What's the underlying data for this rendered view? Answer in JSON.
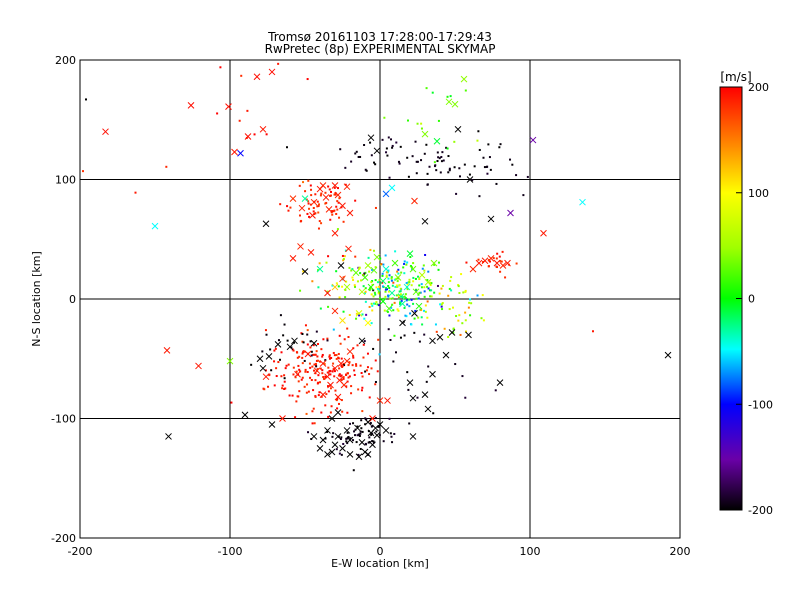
{
  "chart_data": {
    "type": "scatter",
    "title": "Tromsø 20161103 17:28:00-17:29:43",
    "subtitle": "RwPretec (8p) EXPERIMENTAL SKYMAP",
    "xlabel": "E-W location [km]",
    "ylabel": "N-S location [km]",
    "xlim": [
      -200,
      200
    ],
    "ylim": [
      -200,
      200
    ],
    "x_ticks": [
      "-200",
      "-100",
      "0",
      "100",
      "200"
    ],
    "y_ticks": [
      "-200",
      "-100",
      "0",
      "100",
      "200"
    ],
    "grid": true,
    "colorbar": {
      "label": "[m/s]",
      "range": [
        -200,
        200
      ],
      "ticks": [
        "200",
        "100",
        "0",
        "-100",
        "-200"
      ]
    },
    "point_data": [
      {
        "x": -198,
        "y": 107,
        "v": 180,
        "m": "d"
      },
      {
        "x": -196,
        "y": 167,
        "v": -200,
        "m": "d"
      },
      {
        "x": -183,
        "y": 140,
        "v": 195,
        "m": "x"
      },
      {
        "x": -163,
        "y": 89,
        "v": 190,
        "m": "d"
      },
      {
        "x": -150,
        "y": 61,
        "v": -50,
        "m": "x"
      },
      {
        "x": -142,
        "y": -43,
        "v": 190,
        "m": "x"
      },
      {
        "x": -141,
        "y": -115,
        "v": -200,
        "m": "x"
      },
      {
        "x": -126,
        "y": 162,
        "v": 195,
        "m": "x"
      },
      {
        "x": -121,
        "y": -56,
        "v": 190,
        "m": "x"
      },
      {
        "x": -101,
        "y": 161,
        "v": 195,
        "m": "x"
      },
      {
        "x": -97,
        "y": 123,
        "v": 190,
        "m": "x"
      },
      {
        "x": -93,
        "y": 122,
        "v": -100,
        "m": "x"
      },
      {
        "x": -100,
        "y": -52,
        "v": 40,
        "m": "x"
      },
      {
        "x": -88,
        "y": 136,
        "v": 195,
        "m": "x"
      },
      {
        "x": -82,
        "y": 186,
        "v": 195,
        "m": "x"
      },
      {
        "x": -72,
        "y": 190,
        "v": 195,
        "m": "x"
      },
      {
        "x": -78,
        "y": 142,
        "v": 190,
        "m": "x"
      },
      {
        "x": -76,
        "y": 63,
        "v": -200,
        "m": "x"
      },
      {
        "x": -62,
        "y": 127,
        "v": -200,
        "m": "d"
      },
      {
        "x": -58,
        "y": 84,
        "v": 180,
        "m": "x"
      },
      {
        "x": -50,
        "y": 84,
        "v": -30,
        "m": "x"
      },
      {
        "x": -44,
        "y": 81,
        "v": 185,
        "m": "x"
      },
      {
        "x": -40,
        "y": 92,
        "v": 190,
        "m": "x"
      },
      {
        "x": -38,
        "y": 95,
        "v": 185,
        "m": "x"
      },
      {
        "x": -36,
        "y": 85,
        "v": 190,
        "m": "x"
      },
      {
        "x": -30,
        "y": 95,
        "v": 190,
        "m": "x"
      },
      {
        "x": -28,
        "y": 87,
        "v": 185,
        "m": "x"
      },
      {
        "x": -25,
        "y": 78,
        "v": 190,
        "m": "x"
      },
      {
        "x": -22,
        "y": 94,
        "v": 185,
        "m": "x"
      },
      {
        "x": -20,
        "y": 72,
        "v": 190,
        "m": "x"
      },
      {
        "x": -34,
        "y": 75,
        "v": 185,
        "m": "x"
      },
      {
        "x": -45,
        "y": 70,
        "v": 190,
        "m": "x"
      },
      {
        "x": -52,
        "y": 76,
        "v": 185,
        "m": "x"
      },
      {
        "x": -30,
        "y": 55,
        "v": 190,
        "m": "x"
      },
      {
        "x": -21,
        "y": 42,
        "v": 190,
        "m": "x"
      },
      {
        "x": -46,
        "y": 39,
        "v": 190,
        "m": "x"
      },
      {
        "x": -53,
        "y": 44,
        "v": 185,
        "m": "x"
      },
      {
        "x": -58,
        "y": 34,
        "v": 190,
        "m": "x"
      },
      {
        "x": -50,
        "y": 23,
        "v": -200,
        "m": "x"
      },
      {
        "x": -40,
        "y": 25,
        "v": -30,
        "m": "x"
      },
      {
        "x": -26,
        "y": 28,
        "v": -200,
        "m": "x"
      },
      {
        "x": -25,
        "y": 17,
        "v": 175,
        "m": "x"
      },
      {
        "x": -30,
        "y": 10,
        "v": 120,
        "m": "x"
      },
      {
        "x": -35,
        "y": 5,
        "v": 190,
        "m": "x"
      },
      {
        "x": -30,
        "y": -10,
        "v": 185,
        "m": "x"
      },
      {
        "x": 8,
        "y": 93,
        "v": -50,
        "m": "x"
      },
      {
        "x": 4,
        "y": 88,
        "v": -80,
        "m": "x"
      },
      {
        "x": 23,
        "y": 82,
        "v": 185,
        "m": "x"
      },
      {
        "x": 30,
        "y": 65,
        "v": -200,
        "m": "x"
      },
      {
        "x": -6,
        "y": 135,
        "v": -200,
        "m": "x"
      },
      {
        "x": -2,
        "y": 124,
        "v": -200,
        "m": "x"
      },
      {
        "x": 30,
        "y": 138,
        "v": 40,
        "m": "x"
      },
      {
        "x": 38,
        "y": 132,
        "v": -10,
        "m": "x"
      },
      {
        "x": 46,
        "y": 165,
        "v": 40,
        "m": "x"
      },
      {
        "x": 50,
        "y": 163,
        "v": 40,
        "m": "x"
      },
      {
        "x": 56,
        "y": 184,
        "v": 45,
        "m": "x"
      },
      {
        "x": 52,
        "y": 142,
        "v": -200,
        "m": "x"
      },
      {
        "x": 60,
        "y": 100,
        "v": -200,
        "m": "x"
      },
      {
        "x": 102,
        "y": 133,
        "v": -150,
        "m": "x"
      },
      {
        "x": 87,
        "y": 72,
        "v": -150,
        "m": "x"
      },
      {
        "x": 74,
        "y": 67,
        "v": -200,
        "m": "x"
      },
      {
        "x": 109,
        "y": 55,
        "v": 190,
        "m": "x"
      },
      {
        "x": 135,
        "y": 81,
        "v": -50,
        "m": "x"
      },
      {
        "x": 142,
        "y": -27,
        "v": 190,
        "m": "d"
      },
      {
        "x": 192,
        "y": -47,
        "v": -200,
        "m": "x"
      },
      {
        "x": 62,
        "y": 25,
        "v": 185,
        "m": "x"
      },
      {
        "x": 70,
        "y": 32,
        "v": 190,
        "m": "x"
      },
      {
        "x": 74,
        "y": 34,
        "v": 185,
        "m": "x"
      },
      {
        "x": 78,
        "y": 30,
        "v": 190,
        "m": "x"
      },
      {
        "x": 82,
        "y": 28,
        "v": 185,
        "m": "x"
      },
      {
        "x": 85,
        "y": 30,
        "v": 190,
        "m": "x"
      },
      {
        "x": 66,
        "y": 30,
        "v": 190,
        "m": "x"
      },
      {
        "x": 59,
        "y": -30,
        "v": -200,
        "m": "x"
      },
      {
        "x": 80,
        "y": -70,
        "v": -200,
        "m": "x"
      },
      {
        "x": 35,
        "y": -63,
        "v": -200,
        "m": "x"
      },
      {
        "x": 20,
        "y": -70,
        "v": -200,
        "m": "x"
      },
      {
        "x": 22,
        "y": -83,
        "v": -200,
        "m": "x"
      },
      {
        "x": 30,
        "y": -80,
        "v": -200,
        "m": "x"
      },
      {
        "x": 32,
        "y": -92,
        "v": -200,
        "m": "x"
      },
      {
        "x": 22,
        "y": -115,
        "v": -200,
        "m": "x"
      },
      {
        "x": 40,
        "y": -32,
        "v": -200,
        "m": "x"
      },
      {
        "x": 48,
        "y": -28,
        "v": -200,
        "m": "x"
      },
      {
        "x": 44,
        "y": -47,
        "v": -200,
        "m": "x"
      },
      {
        "x": 35,
        "y": -35,
        "v": -200,
        "m": "x"
      },
      {
        "x": 5,
        "y": -85,
        "v": 190,
        "m": "x"
      },
      {
        "x": 0,
        "y": -85,
        "v": 185,
        "m": "x"
      },
      {
        "x": -5,
        "y": -100,
        "v": 190,
        "m": "x"
      },
      {
        "x": 15,
        "y": -20,
        "v": -200,
        "m": "x"
      },
      {
        "x": 23,
        "y": -12,
        "v": -200,
        "m": "x"
      },
      {
        "x": -12,
        "y": -35,
        "v": -200,
        "m": "x"
      },
      {
        "x": -57,
        "y": -35,
        "v": -200,
        "m": "x"
      },
      {
        "x": -60,
        "y": -40,
        "v": -200,
        "m": "x"
      },
      {
        "x": -68,
        "y": -38,
        "v": -200,
        "m": "x"
      },
      {
        "x": -80,
        "y": -50,
        "v": -200,
        "m": "x"
      },
      {
        "x": -74,
        "y": -48,
        "v": -200,
        "m": "x"
      },
      {
        "x": -78,
        "y": -58,
        "v": -200,
        "m": "x"
      },
      {
        "x": -44,
        "y": -37,
        "v": -200,
        "m": "x"
      },
      {
        "x": -48,
        "y": -46,
        "v": 190,
        "m": "x"
      },
      {
        "x": -38,
        "y": -54,
        "v": 190,
        "m": "x"
      },
      {
        "x": -42,
        "y": -60,
        "v": 185,
        "m": "x"
      },
      {
        "x": -35,
        "y": -65,
        "v": 190,
        "m": "x"
      },
      {
        "x": -30,
        "y": -58,
        "v": 190,
        "m": "x"
      },
      {
        "x": -26,
        "y": -54,
        "v": 190,
        "m": "x"
      },
      {
        "x": -22,
        "y": -52,
        "v": 185,
        "m": "x"
      },
      {
        "x": -27,
        "y": -68,
        "v": 190,
        "m": "x"
      },
      {
        "x": -33,
        "y": -72,
        "v": 190,
        "m": "x"
      },
      {
        "x": -20,
        "y": -44,
        "v": 185,
        "m": "x"
      },
      {
        "x": -28,
        "y": -82,
        "v": 190,
        "m": "x"
      },
      {
        "x": -24,
        "y": -72,
        "v": 185,
        "m": "x"
      },
      {
        "x": -38,
        "y": -80,
        "v": 190,
        "m": "x"
      },
      {
        "x": -76,
        "y": -65,
        "v": 190,
        "m": "x"
      },
      {
        "x": -55,
        "y": -63,
        "v": 190,
        "m": "x"
      },
      {
        "x": -65,
        "y": -100,
        "v": 190,
        "m": "x"
      },
      {
        "x": -90,
        "y": -97,
        "v": -200,
        "m": "x"
      },
      {
        "x": -72,
        "y": -105,
        "v": -200,
        "m": "x"
      },
      {
        "x": -32,
        "y": -100,
        "v": -200,
        "m": "x"
      },
      {
        "x": -28,
        "y": -95,
        "v": -200,
        "m": "x"
      },
      {
        "x": -35,
        "y": -110,
        "v": -200,
        "m": "x"
      },
      {
        "x": -38,
        "y": -118,
        "v": -200,
        "m": "x"
      },
      {
        "x": -40,
        "y": -125,
        "v": -200,
        "m": "x"
      },
      {
        "x": -32,
        "y": -128,
        "v": -200,
        "m": "x"
      },
      {
        "x": -25,
        "y": -125,
        "v": -200,
        "m": "x"
      },
      {
        "x": -28,
        "y": -115,
        "v": -200,
        "m": "x"
      },
      {
        "x": -22,
        "y": -110,
        "v": -200,
        "m": "x"
      },
      {
        "x": -15,
        "y": -108,
        "v": -200,
        "m": "x"
      },
      {
        "x": -12,
        "y": -120,
        "v": -200,
        "m": "x"
      },
      {
        "x": -10,
        "y": -128,
        "v": -200,
        "m": "x"
      },
      {
        "x": -14,
        "y": -132,
        "v": -200,
        "m": "x"
      },
      {
        "x": -8,
        "y": -130,
        "v": -200,
        "m": "x"
      },
      {
        "x": -5,
        "y": -122,
        "v": -200,
        "m": "x"
      },
      {
        "x": -2,
        "y": -114,
        "v": -200,
        "m": "x"
      },
      {
        "x": 0,
        "y": -105,
        "v": -200,
        "m": "x"
      },
      {
        "x": -3,
        "y": -108,
        "v": -200,
        "m": "x"
      },
      {
        "x": -6,
        "y": -112,
        "v": -200,
        "m": "x"
      },
      {
        "x": -20,
        "y": -118,
        "v": -200,
        "m": "x"
      },
      {
        "x": -30,
        "y": -122,
        "v": -200,
        "m": "x"
      },
      {
        "x": -35,
        "y": -130,
        "v": -200,
        "m": "x"
      },
      {
        "x": -44,
        "y": -115,
        "v": -200,
        "m": "x"
      },
      {
        "x": -8,
        "y": -103,
        "v": -200,
        "m": "x"
      },
      {
        "x": 4,
        "y": -110,
        "v": -200,
        "m": "x"
      },
      {
        "x": -20,
        "y": -130,
        "v": -200,
        "m": "x"
      },
      {
        "x": -10,
        "y": 18,
        "v": 20,
        "m": "x"
      },
      {
        "x": -4,
        "y": 24,
        "v": 30,
        "m": "x"
      },
      {
        "x": 2,
        "y": 15,
        "v": -20,
        "m": "x"
      },
      {
        "x": 8,
        "y": 5,
        "v": -30,
        "m": "x"
      },
      {
        "x": 12,
        "y": 18,
        "v": 40,
        "m": "x"
      },
      {
        "x": 18,
        "y": 10,
        "v": -40,
        "m": "x"
      },
      {
        "x": 22,
        "y": 25,
        "v": 30,
        "m": "x"
      },
      {
        "x": 28,
        "y": 20,
        "v": 60,
        "m": "x"
      },
      {
        "x": -6,
        "y": 10,
        "v": 10,
        "m": "x"
      },
      {
        "x": 2,
        "y": -2,
        "v": 0,
        "m": "x"
      },
      {
        "x": 10,
        "y": 30,
        "v": 20,
        "m": "x"
      },
      {
        "x": -2,
        "y": 35,
        "v": 40,
        "m": "x"
      },
      {
        "x": -8,
        "y": 28,
        "v": 50,
        "m": "x"
      },
      {
        "x": -16,
        "y": 22,
        "v": 30,
        "m": "x"
      },
      {
        "x": 6,
        "y": -8,
        "v": 20,
        "m": "x"
      },
      {
        "x": 15,
        "y": -4,
        "v": -30,
        "m": "x"
      },
      {
        "x": 24,
        "y": 6,
        "v": 30,
        "m": "x"
      },
      {
        "x": 32,
        "y": 14,
        "v": 50,
        "m": "x"
      },
      {
        "x": -12,
        "y": 6,
        "v": 60,
        "m": "x"
      },
      {
        "x": 20,
        "y": 38,
        "v": -10,
        "m": "x"
      },
      {
        "x": 36,
        "y": 30,
        "v": 40,
        "m": "x"
      },
      {
        "x": -22,
        "y": 10,
        "v": 50,
        "m": "x"
      },
      {
        "x": -14,
        "y": -12,
        "v": 80,
        "m": "x"
      },
      {
        "x": -8,
        "y": -20,
        "v": 100,
        "m": "x"
      },
      {
        "x": -25,
        "y": -18,
        "v": 110,
        "m": "x"
      },
      {
        "x": 4,
        "y": 25,
        "v": -40,
        "m": "x"
      },
      {
        "x": 14,
        "y": 2,
        "v": -20,
        "m": "x"
      },
      {
        "x": 26,
        "y": -6,
        "v": 10,
        "m": "x"
      }
    ],
    "point_clusters": [
      {
        "cx": -38,
        "cy": -62,
        "sx": 18,
        "sy": 16,
        "n": 220,
        "v": 190,
        "vs": 10,
        "m": "d"
      },
      {
        "cx": -42,
        "cy": 80,
        "sx": 12,
        "sy": 10,
        "n": 70,
        "v": 185,
        "vs": 12,
        "m": "d"
      },
      {
        "cx": 10,
        "cy": 10,
        "sx": 18,
        "sy": 14,
        "n": 220,
        "v": 0,
        "vs": 70,
        "m": "d"
      },
      {
        "cx": 50,
        "cy": -10,
        "sx": 10,
        "sy": 12,
        "n": 40,
        "v": 40,
        "vs": 60,
        "m": "d"
      },
      {
        "cx": 45,
        "cy": 113,
        "sx": 25,
        "sy": 12,
        "n": 60,
        "v": -195,
        "vs": 5,
        "m": "d"
      },
      {
        "cx": 0,
        "cy": 125,
        "sx": 15,
        "sy": 8,
        "n": 25,
        "v": -195,
        "vs": 5,
        "m": "d"
      },
      {
        "cx": -12,
        "cy": -115,
        "sx": 12,
        "sy": 9,
        "n": 70,
        "v": -195,
        "vs": 5,
        "m": "d"
      },
      {
        "cx": 25,
        "cy": -55,
        "sx": 20,
        "sy": 20,
        "n": 25,
        "v": -195,
        "vs": 5,
        "m": "d"
      },
      {
        "cx": -60,
        "cy": -40,
        "sx": 15,
        "sy": 12,
        "n": 25,
        "v": -195,
        "vs": 5,
        "m": "d"
      },
      {
        "cx": 75,
        "cy": 30,
        "sx": 8,
        "sy": 5,
        "n": 20,
        "v": 185,
        "vs": 10,
        "m": "d"
      },
      {
        "cx": -20,
        "cy": 20,
        "sx": 14,
        "sy": 14,
        "n": 45,
        "v": 60,
        "vs": 60,
        "m": "d"
      },
      {
        "cx": 40,
        "cy": 150,
        "sx": 15,
        "sy": 25,
        "n": 15,
        "v": 30,
        "vs": 30,
        "m": "d"
      },
      {
        "cx": -80,
        "cy": 150,
        "sx": 25,
        "sy": 30,
        "n": 12,
        "v": 190,
        "vs": 10,
        "m": "d"
      }
    ]
  }
}
